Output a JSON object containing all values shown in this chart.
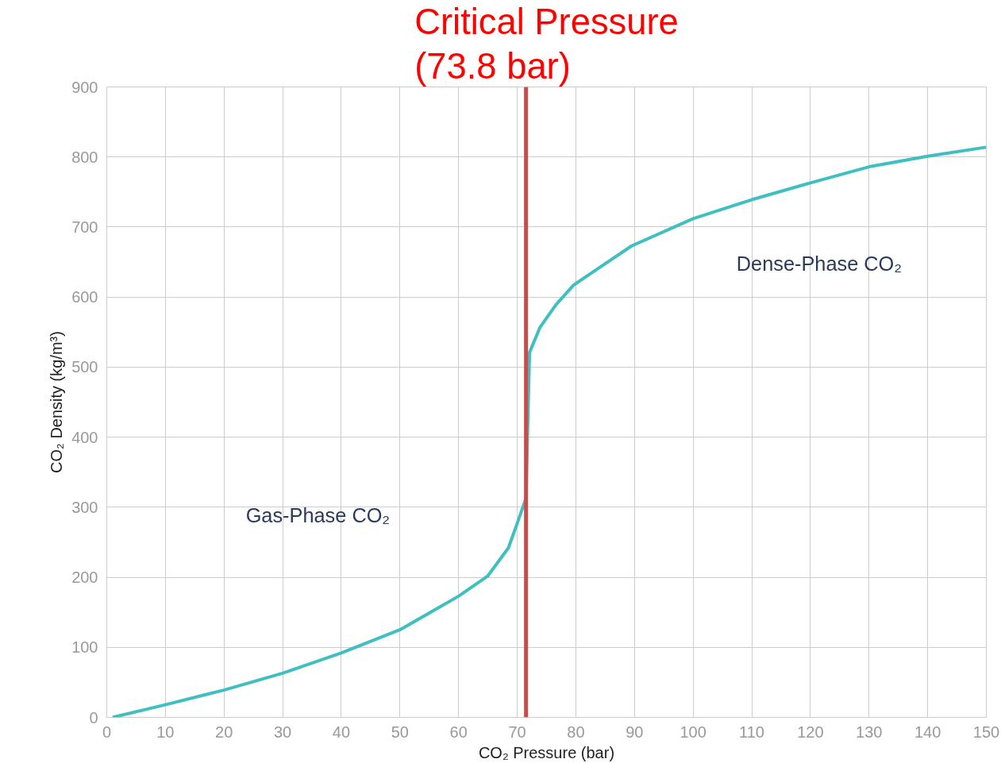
{
  "chart_data": {
    "type": "line",
    "xlabel": "CO₂ Pressure (bar)",
    "ylabel": "CO₂ Density (kg/m³)",
    "xlim": [
      0,
      150
    ],
    "xticks": [
      0,
      10,
      20,
      30,
      40,
      50,
      60,
      70,
      80,
      90,
      100,
      110,
      120,
      130,
      140,
      150
    ],
    "ylim": [
      0,
      900
    ],
    "yticks": [
      0,
      100,
      200,
      300,
      400,
      500,
      600,
      700,
      800,
      900
    ],
    "grid": true,
    "marker": "none",
    "line_style": "solid",
    "x": [
      1,
      10,
      20,
      30,
      40,
      50,
      60,
      65,
      68.5,
      70,
      71.5,
      71.8,
      72.1,
      73.9,
      76.6,
      79.6,
      84.7,
      89.5,
      100,
      110,
      120,
      130,
      140,
      150
    ],
    "series": [
      {
        "color": "#3fbfc0",
        "values": [
          0,
          18,
          39,
          63,
          92,
          125,
          173,
          202,
          242,
          277,
          313,
          420,
          521,
          557,
          589,
          617,
          646,
          673,
          712,
          739,
          763,
          786,
          801,
          814
        ]
      }
    ],
    "ref_lines": [
      {
        "axis": "x",
        "value": 71.5,
        "label": "Critical Pressure\n(73.8 bar)",
        "color": "#c0504d"
      }
    ],
    "annotations": [
      "Gas-Phase CO₂",
      "Dense-Phase CO₂"
    ]
  }
}
